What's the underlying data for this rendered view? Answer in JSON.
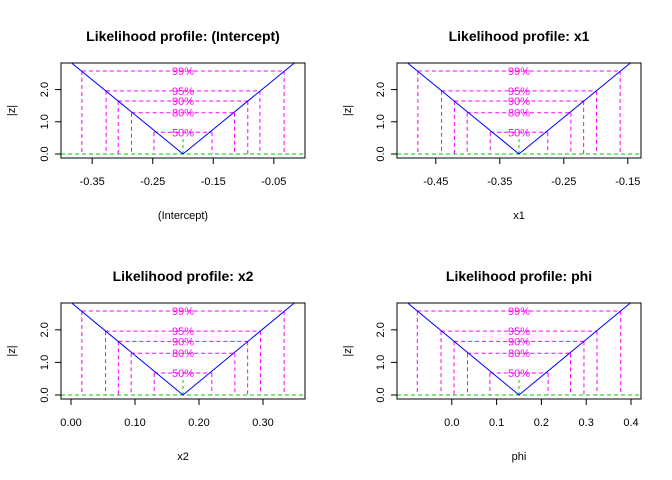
{
  "colors": {
    "profile_line": "#0000ff",
    "conf_lines": "#ff00ff",
    "zero_line": "#00cc00",
    "axis": "#000000",
    "frame": "#000000"
  },
  "conf_levels": [
    {
      "label": "99%",
      "z": 2.576
    },
    {
      "label": "95%",
      "z": 1.96
    },
    {
      "label": "90%",
      "z": 1.645
    },
    {
      "label": "80%",
      "z": 1.282
    },
    {
      "label": "50%",
      "z": 0.674
    }
  ],
  "chart_data": [
    {
      "type": "line",
      "title": "Likelihood profile: (Intercept)",
      "xlabel": "(Intercept)",
      "ylabel": "|z|",
      "xlim": [
        -0.385,
        -0.015
      ],
      "ylim": [
        0,
        2.7
      ],
      "xticks": [
        -0.35,
        -0.25,
        -0.15,
        -0.05
      ],
      "xtick_labels": [
        "-0.35",
        "-0.25",
        "-0.15",
        "-0.05"
      ],
      "yticks": [
        0,
        1,
        2
      ],
      "ytick_labels": [
        "0.0",
        "1.0",
        "2.0"
      ],
      "x": [
        -0.385,
        -0.2,
        -0.015
      ],
      "y": [
        2.84,
        0,
        2.84
      ],
      "ci_lower": [
        -0.367,
        -0.327,
        -0.307,
        -0.285,
        -0.248
      ],
      "ci_upper": [
        -0.033,
        -0.073,
        -0.093,
        -0.115,
        -0.152
      ]
    },
    {
      "type": "line",
      "title": "Likelihood profile: x1",
      "xlabel": "x1",
      "ylabel": "|z|",
      "xlim": [
        -0.495,
        -0.145
      ],
      "ylim": [
        0,
        2.7
      ],
      "xticks": [
        -0.45,
        -0.35,
        -0.25,
        -0.15
      ],
      "xtick_labels": [
        "-0.45",
        "-0.35",
        "-0.25",
        "-0.15"
      ],
      "yticks": [
        0,
        1,
        2
      ],
      "ytick_labels": [
        "0.0",
        "1.0",
        "2.0"
      ],
      "x": [
        -0.495,
        -0.32,
        -0.145
      ],
      "y": [
        2.84,
        0,
        2.84
      ],
      "ci_lower": [
        -0.478,
        -0.441,
        -0.421,
        -0.401,
        -0.365
      ],
      "ci_upper": [
        -0.162,
        -0.199,
        -0.219,
        -0.239,
        -0.275
      ]
    },
    {
      "type": "line",
      "title": "Likelihood profile: x2",
      "xlabel": "x2",
      "ylabel": "|z|",
      "xlim": [
        0.0,
        0.35
      ],
      "ylim": [
        0,
        2.7
      ],
      "xticks": [
        0.0,
        0.1,
        0.2,
        0.3
      ],
      "xtick_labels": [
        "0.00",
        "0.10",
        "0.20",
        "0.30"
      ],
      "yticks": [
        0,
        1,
        2
      ],
      "ytick_labels": [
        "0.0",
        "1.0",
        "2.0"
      ],
      "x": [
        0.0,
        0.175,
        0.35
      ],
      "y": [
        2.84,
        0,
        2.84
      ],
      "ci_lower": [
        0.017,
        0.054,
        0.074,
        0.094,
        0.13
      ],
      "ci_upper": [
        0.333,
        0.296,
        0.276,
        0.256,
        0.22
      ]
    },
    {
      "type": "line",
      "title": "Likelihood profile: phi",
      "xlabel": "phi",
      "ylabel": "|z|",
      "xlim": [
        -0.1,
        0.4
      ],
      "ylim": [
        0,
        2.7
      ],
      "xticks": [
        0.0,
        0.1,
        0.2,
        0.3,
        0.4
      ],
      "xtick_labels": [
        "0.0",
        "0.1",
        "0.2",
        "0.3",
        "0.4"
      ],
      "yticks": [
        0,
        1,
        2
      ],
      "ytick_labels": [
        "0.0",
        "1.0",
        "2.0"
      ],
      "x": [
        -0.1,
        0.15,
        0.4
      ],
      "y": [
        2.84,
        0,
        2.84
      ],
      "ci_lower": [
        -0.077,
        -0.024,
        0.005,
        0.035,
        0.085
      ],
      "ci_upper": [
        0.377,
        0.324,
        0.295,
        0.265,
        0.215
      ]
    }
  ]
}
